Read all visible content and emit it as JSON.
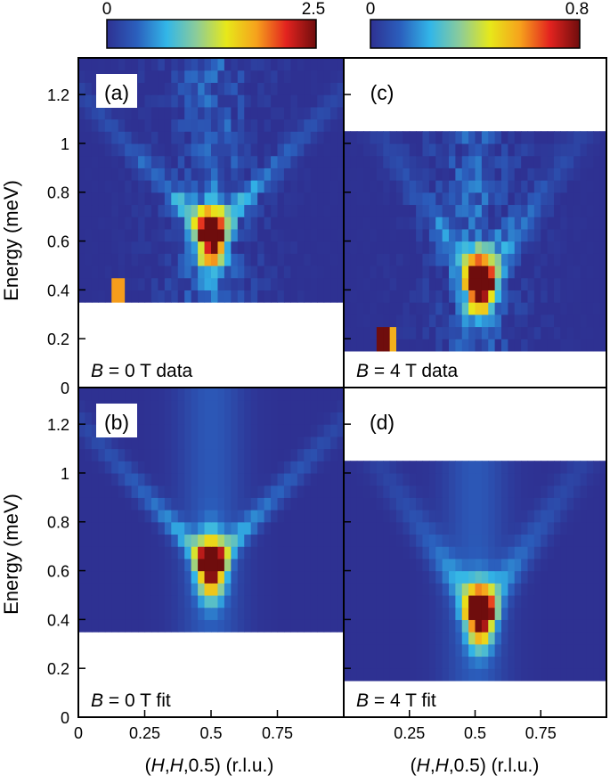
{
  "colorbars": [
    {
      "id": "left",
      "min_label": "0",
      "max_label": "2.5",
      "min": 0,
      "max": 2.5
    },
    {
      "id": "right",
      "min_label": "0",
      "max_label": "0.8",
      "min": 0,
      "max": 0.8
    }
  ],
  "colormap": [
    "#2e3192",
    "#2b5fbd",
    "#32b6e8",
    "#8ccc99",
    "#e7e81a",
    "#f6a21c",
    "#e3231f",
    "#6f0d0d"
  ],
  "axes": {
    "ylabel": "Energy (meV)",
    "xlabel": {
      "prefix": "(",
      "h1": "H",
      "sep1": ",",
      "h2": "H",
      "suffix": ",0.5) (r.l.u.)"
    },
    "xlim": [
      0,
      1.0
    ],
    "ylim": [
      0,
      1.35
    ],
    "yticks": [
      "0",
      "0.2",
      "0.4",
      "0.6",
      "0.8",
      "1",
      "1.2"
    ],
    "yticks_values": [
      0,
      0.2,
      0.4,
      0.6,
      0.8,
      1.0,
      1.2
    ],
    "xticks_left": [
      "0",
      "0.25",
      "0.5",
      "0.75"
    ],
    "xticks_left_values": [
      0,
      0.25,
      0.5,
      0.75
    ],
    "xticks_right": [
      "0.25",
      "0.5",
      "0.75"
    ],
    "xticks_right_values": [
      0.25,
      0.5,
      0.75
    ],
    "background_color": "#2e3192"
  },
  "chart_data": [
    {
      "type": "heatmap",
      "panel": "(a)",
      "caption_var": "B",
      "caption_rest": " = 0 T data",
      "vmax": 2.5,
      "emin": 0.35,
      "emax": 1.35,
      "ebin": 0.05,
      "peak": {
        "h": 0.5,
        "e": 0.62,
        "amp": 2.6
      },
      "modes": [
        {
          "h0": 0.5,
          "e0": 0.62,
          "slope": 1.2,
          "width": 0.05,
          "amp": 2.0
        },
        {
          "h0": 0.5,
          "e0": 0.62,
          "slope": -1.2,
          "width": 0.05,
          "amp": 2.0
        }
      ],
      "noise": 0.25,
      "hot_spots": [
        {
          "h": 0.16,
          "e": 0.4,
          "v": 1.8
        }
      ]
    },
    {
      "type": "heatmap",
      "panel": "(b)",
      "caption_var": "B",
      "caption_rest": " = 0 T fit",
      "vmax": 2.5,
      "emin": 0.35,
      "emax": 1.35,
      "ebin": 0.05,
      "peak": {
        "h": 0.5,
        "e": 0.62,
        "amp": 2.6
      },
      "modes": [
        {
          "h0": 0.5,
          "e0": 0.62,
          "slope": 1.2,
          "width": 0.05,
          "amp": 2.0
        },
        {
          "h0": 0.5,
          "e0": 0.62,
          "slope": -1.2,
          "width": 0.05,
          "amp": 2.0
        }
      ],
      "noise": 0.0,
      "hot_spots": []
    },
    {
      "type": "heatmap",
      "panel": "(c)",
      "caption_var": "B",
      "caption_rest": " = 4 T data",
      "vmax": 0.8,
      "emin": 0.15,
      "emax": 1.05,
      "ebin": 0.05,
      "peak": {
        "h": 0.52,
        "e": 0.42,
        "amp": 0.85
      },
      "modes": [
        {
          "h0": 0.52,
          "e0": 0.42,
          "slope": 1.6,
          "width": 0.06,
          "amp": 0.55
        },
        {
          "h0": 0.52,
          "e0": 0.42,
          "slope": -1.6,
          "width": 0.06,
          "amp": 0.55
        }
      ],
      "noise": 0.08,
      "hot_spots": [
        {
          "h": 0.14,
          "e": 0.2,
          "v": 0.8
        },
        {
          "h": 0.17,
          "e": 0.2,
          "v": 0.55
        }
      ]
    },
    {
      "type": "heatmap",
      "panel": "(d)",
      "caption_var": "B",
      "caption_rest": " = 4 T fit",
      "vmax": 0.8,
      "emin": 0.15,
      "emax": 1.05,
      "ebin": 0.05,
      "peak": {
        "h": 0.52,
        "e": 0.42,
        "amp": 0.85
      },
      "modes": [
        {
          "h0": 0.52,
          "e0": 0.42,
          "slope": 1.6,
          "width": 0.06,
          "amp": 0.55
        },
        {
          "h0": 0.52,
          "e0": 0.42,
          "slope": -1.6,
          "width": 0.06,
          "amp": 0.55
        }
      ],
      "noise": 0.0,
      "hot_spots": []
    }
  ]
}
